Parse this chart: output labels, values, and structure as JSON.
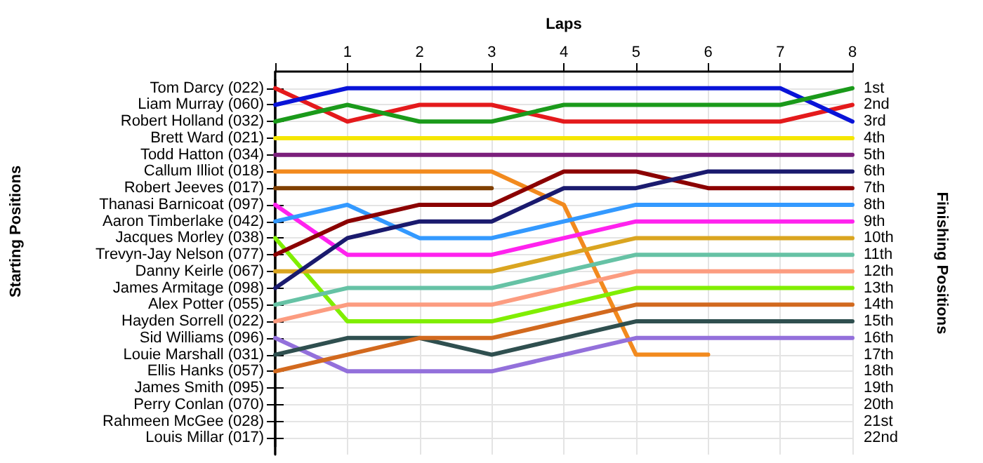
{
  "chart_data": {
    "type": "line",
    "xlabel": "Laps",
    "annotations": [
      "Starting Positions"
    ],
    "y2label": "Finishing Positions",
    "x": [
      0,
      1,
      2,
      3,
      4,
      5,
      6,
      7,
      8
    ],
    "xlim": [
      0,
      8
    ],
    "xticks": [
      {
        "value": 0,
        "label": null
      },
      1,
      2,
      3,
      4,
      5,
      6,
      7,
      8
    ],
    "y_categories": [
      "Tom Darcy (022)",
      "Liam Murray (060)",
      "Robert Holland (032)",
      "Brett Ward (021)",
      "Todd Hatton (034)",
      "Callum Illiot (018)",
      "Robert Jeeves (017)",
      "Thanasi Barnicoat (097)",
      "Aaron Timberlake (042)",
      "Jacques Morley (038)",
      "Trevyn-Jay Nelson (077)",
      "Danny Keirle (067)",
      "James Armitage (098)",
      "Alex Potter (055)",
      "Hayden Sorrell (022)",
      "Sid Williams (096)",
      "Louie Marshall (031)",
      "Ellis Hanks (057)",
      "James Smith (095)",
      "Perry Conlan (070)",
      "Rahmeen McGee (028)",
      "Louis Millar (017)"
    ],
    "y2lim": [
      23,
      0
    ],
    "y2ticks": [
      {
        "value": 1,
        "label": "1st"
      },
      {
        "value": 2,
        "label": "2nd"
      },
      {
        "value": 3,
        "label": "3rd"
      },
      {
        "value": 4,
        "label": "4th"
      },
      {
        "value": 5,
        "label": "5th"
      },
      {
        "value": 6,
        "label": "6th"
      },
      {
        "value": 7,
        "label": "7th"
      },
      {
        "value": 8,
        "label": "8th"
      },
      {
        "value": 9,
        "label": "9th"
      },
      {
        "value": 10,
        "label": "10th"
      },
      {
        "value": 11,
        "label": "11th"
      },
      {
        "value": 12,
        "label": "12th"
      },
      {
        "value": 13,
        "label": "13th"
      },
      {
        "value": 14,
        "label": "14th"
      },
      {
        "value": 15,
        "label": "15th"
      },
      {
        "value": 16,
        "label": "16th"
      },
      {
        "value": 17,
        "label": "17th"
      },
      {
        "value": 18,
        "label": "18th"
      },
      {
        "value": 19,
        "label": "19th"
      },
      {
        "value": 20,
        "label": "20th"
      },
      {
        "value": 21,
        "label": "21st"
      },
      {
        "value": 22,
        "label": "22nd"
      }
    ],
    "grid": true,
    "marker": "none",
    "line_style": "solid",
    "series": [
      {
        "axis": "y2",
        "color": "#e41a1c",
        "values": [
          1,
          3,
          2,
          2,
          3,
          3,
          3,
          3,
          2
        ]
      },
      {
        "axis": "y2",
        "color": "#0a14d8",
        "values": [
          2,
          1,
          1,
          1,
          1,
          1,
          1,
          1,
          3
        ]
      },
      {
        "axis": "y2",
        "color": "#1a9a1a",
        "values": [
          3,
          2,
          3,
          3,
          2,
          2,
          2,
          2,
          1
        ]
      },
      {
        "axis": "y2",
        "color": "#f5e600",
        "values": [
          4,
          4,
          4,
          4,
          4,
          4,
          4,
          4,
          4
        ]
      },
      {
        "axis": "y2",
        "color": "#7b1f7b",
        "values": [
          5,
          5,
          5,
          5,
          5,
          5,
          5,
          5,
          5
        ]
      },
      {
        "axis": "y2",
        "color": "#f28a1e",
        "values": [
          6,
          6,
          6,
          6,
          8,
          17,
          17,
          null,
          null
        ]
      },
      {
        "axis": "y2",
        "color": "#7f3f00",
        "values": [
          7,
          7,
          7,
          7,
          null,
          null,
          null,
          null,
          null
        ]
      },
      {
        "axis": "y2",
        "color": "#ff22ee",
        "values": [
          8,
          11,
          11,
          11,
          10,
          9,
          9,
          9,
          9
        ]
      },
      {
        "axis": "y2",
        "color": "#3399ff",
        "values": [
          9,
          8,
          10,
          10,
          9,
          8,
          8,
          8,
          8
        ]
      },
      {
        "axis": "y2",
        "color": "#80ee00",
        "values": [
          10,
          15,
          15,
          15,
          14,
          13,
          13,
          13,
          13
        ]
      },
      {
        "axis": "y2",
        "color": "#8b0000",
        "values": [
          11,
          9,
          8,
          8,
          6,
          6,
          7,
          7,
          7
        ]
      },
      {
        "axis": "y2",
        "color": "#daa520",
        "values": [
          12,
          12,
          12,
          12,
          11,
          10,
          10,
          10,
          10
        ]
      },
      {
        "axis": "y2",
        "color": "#1a1a6e",
        "values": [
          13,
          10,
          9,
          9,
          7,
          7,
          6,
          6,
          6
        ]
      },
      {
        "axis": "y2",
        "color": "#66c2a5",
        "values": [
          14,
          13,
          13,
          13,
          12,
          11,
          11,
          11,
          11
        ]
      },
      {
        "axis": "y2",
        "color": "#fc9c80",
        "values": [
          15,
          14,
          14,
          14,
          13,
          12,
          12,
          12,
          12
        ]
      },
      {
        "axis": "y2",
        "color": "#9370db",
        "values": [
          16,
          18,
          18,
          18,
          17,
          16,
          16,
          16,
          16
        ]
      },
      {
        "axis": "y2",
        "color": "#2f4f4f",
        "values": [
          17,
          16,
          16,
          17,
          16,
          15,
          15,
          15,
          15
        ]
      },
      {
        "axis": "y2",
        "color": "#d2691e",
        "values": [
          18,
          17,
          16,
          16,
          15,
          14,
          14,
          14,
          14
        ]
      }
    ]
  }
}
